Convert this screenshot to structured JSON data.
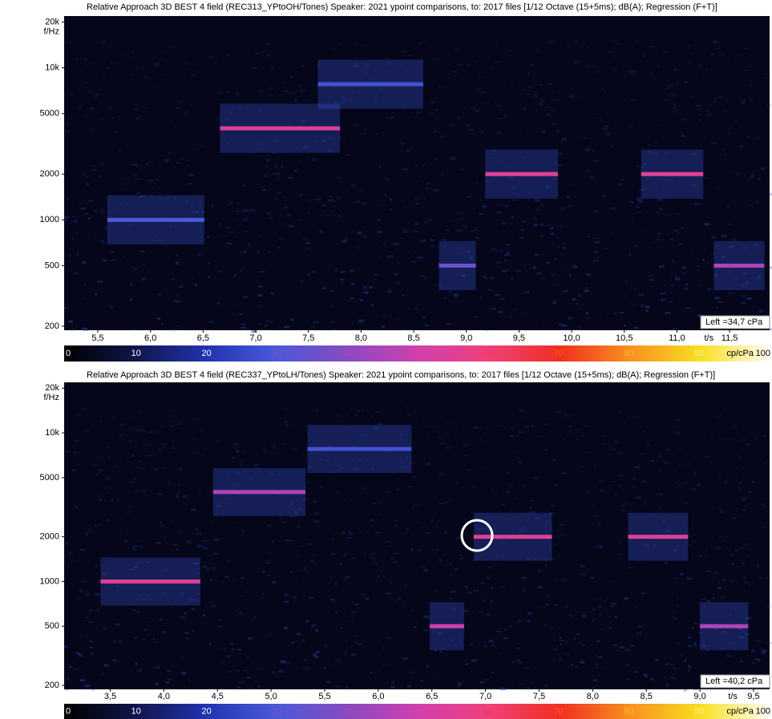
{
  "chart_data": [
    {
      "type": "spectrogram",
      "title": "Relative Approach 3D BEST 4 field (REC313_YPtoOH/Tones) Speaker: 2021 ypoint comparisons, to: 2017 files [1/12 Octave (15+5ms); dB(A); Regression (F+T)]",
      "ylabel": "f/Hz",
      "xlabel": "t/s",
      "log_y": true,
      "xlim": [
        5.18,
        11.88
      ],
      "ylim": [
        188,
        21900
      ],
      "yticks": [
        200,
        500,
        1000,
        2000,
        5000,
        {
          "value": 10000,
          "label": "10k"
        },
        {
          "value": 20000,
          "label": "20k"
        }
      ],
      "xticks": [
        {
          "value": 5.5,
          "label": "5,5"
        },
        {
          "value": 6.0,
          "label": "6,0"
        },
        {
          "value": 6.5,
          "label": "6,5"
        },
        {
          "value": 7.0,
          "label": "7,0"
        },
        {
          "value": 7.5,
          "label": "7,5"
        },
        {
          "value": 8.0,
          "label": "8,0"
        },
        {
          "value": 8.5,
          "label": "8,5"
        },
        {
          "value": 9.0,
          "label": "9,0"
        },
        {
          "value": 9.5,
          "label": "9,5"
        },
        {
          "value": 10.0,
          "label": "10,0"
        },
        {
          "value": 10.5,
          "label": "10,5"
        },
        {
          "value": 11.0,
          "label": "11,0"
        },
        {
          "value": 11.5,
          "label": "11,5"
        }
      ],
      "tones": [
        {
          "t0": 5.59,
          "t1": 6.51,
          "f": 1000,
          "level": 30
        },
        {
          "t0": 6.66,
          "t1": 7.8,
          "f": 4000,
          "level": 55
        },
        {
          "t0": 7.59,
          "t1": 8.59,
          "f": 7800,
          "level": 28
        },
        {
          "t0": 8.74,
          "t1": 9.09,
          "f": 500,
          "level": 35
        },
        {
          "t0": 9.18,
          "t1": 9.87,
          "f": 2000,
          "level": 55
        },
        {
          "t0": 10.66,
          "t1": 11.25,
          "f": 2000,
          "level": 55
        },
        {
          "t0": 11.35,
          "t1": 11.83,
          "f": 500,
          "level": 45
        }
      ],
      "annotation": "Left =34,7 cPa",
      "colorbar": {
        "label": "cp/cPa",
        "ticks": [
          0,
          10,
          20,
          30,
          40,
          50,
          60,
          70,
          80,
          90,
          100
        ]
      }
    },
    {
      "type": "spectrogram",
      "title": "Relative Approach 3D BEST 4 field (REC337_YPtoLH/Tones) Speaker: 2021 ypoint comparisons, to: 2017 files [1/12 Octave (15+5ms); dB(A); Regression (F+T)]",
      "ylabel": "f/Hz",
      "xlabel": "t/s",
      "log_y": true,
      "xlim": [
        3.07,
        9.65
      ],
      "ylim": [
        188,
        21900
      ],
      "yticks": [
        200,
        500,
        1000,
        2000,
        5000,
        {
          "value": 10000,
          "label": "10k"
        },
        {
          "value": 20000,
          "label": "20k"
        }
      ],
      "xticks": [
        {
          "value": 3.5,
          "label": "3,5"
        },
        {
          "value": 4.0,
          "label": "4,0"
        },
        {
          "value": 4.5,
          "label": "4,5"
        },
        {
          "value": 5.0,
          "label": "5,0"
        },
        {
          "value": 5.5,
          "label": "5,5"
        },
        {
          "value": 6.0,
          "label": "6,0"
        },
        {
          "value": 6.5,
          "label": "6,5"
        },
        {
          "value": 7.0,
          "label": "7,0"
        },
        {
          "value": 7.5,
          "label": "7,5"
        },
        {
          "value": 8.0,
          "label": "8,0"
        },
        {
          "value": 8.5,
          "label": "8,5"
        },
        {
          "value": 9.0,
          "label": "9,0"
        },
        {
          "value": 9.5,
          "label": "9,5"
        }
      ],
      "tones": [
        {
          "t0": 3.41,
          "t1": 4.34,
          "f": 1000,
          "level": 55
        },
        {
          "t0": 4.46,
          "t1": 5.32,
          "f": 4000,
          "level": 45
        },
        {
          "t0": 5.34,
          "t1": 6.31,
          "f": 7800,
          "level": 28
        },
        {
          "t0": 6.48,
          "t1": 6.8,
          "f": 500,
          "level": 50
        },
        {
          "t0": 6.89,
          "t1": 7.62,
          "f": 2000,
          "level": 55
        },
        {
          "t0": 8.33,
          "t1": 8.89,
          "f": 2000,
          "level": 55
        },
        {
          "t0": 9.0,
          "t1": 9.45,
          "f": 500,
          "level": 45
        }
      ],
      "annotation": "Left =40,2 cPa",
      "colorbar": {
        "label": "cp/cPa",
        "ticks": [
          0,
          10,
          20,
          30,
          40,
          50,
          60,
          70,
          80,
          90,
          100
        ]
      }
    }
  ]
}
